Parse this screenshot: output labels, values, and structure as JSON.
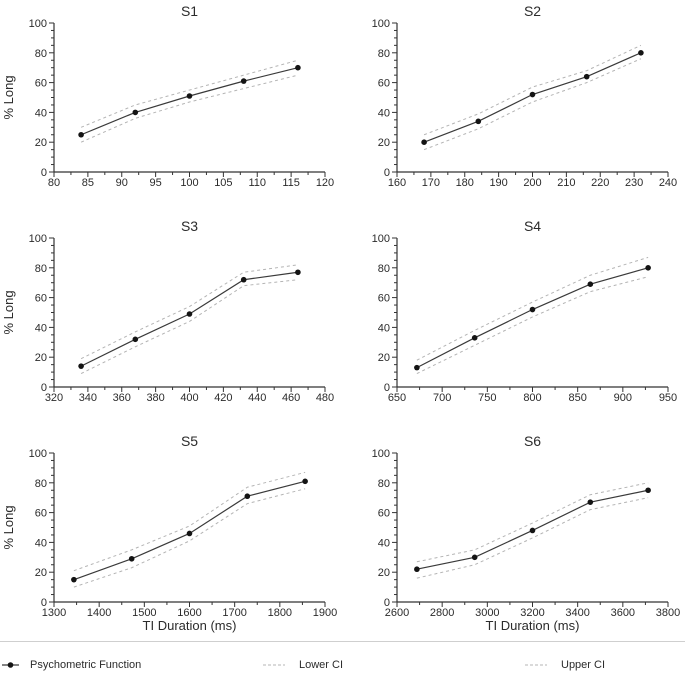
{
  "colors": {
    "background": "#ffffff",
    "line": "#3a3a3a",
    "marker": "#141414",
    "ci": "#b4b4b4",
    "axis": "#333333",
    "text": "#2b2b2b",
    "divider": "#cfcfcf"
  },
  "legend": {
    "position": "bottom",
    "items": [
      {
        "label": "Psychometric Function",
        "style": "solid-line-with-marker"
      },
      {
        "label": "Lower CI",
        "style": "dashed"
      },
      {
        "label": "Upper CI",
        "style": "dashed"
      }
    ]
  },
  "chart_data": [
    {
      "type": "line",
      "title": "S1",
      "x": [
        84,
        92,
        100,
        108,
        116
      ],
      "series": [
        {
          "name": "Psychometric Function",
          "style": "solid-marker",
          "values": [
            25,
            40,
            51,
            61,
            70
          ]
        },
        {
          "name": "Lower CI",
          "style": "dashed",
          "values": [
            20,
            36,
            47,
            56,
            65
          ]
        },
        {
          "name": "Upper CI",
          "style": "dashed",
          "values": [
            30,
            45,
            55,
            65,
            75
          ]
        }
      ],
      "xlim": [
        80,
        120
      ],
      "xtick_step": 5,
      "xminor_step": 2.5,
      "ylim": [
        0,
        100
      ],
      "ytick_step": 20,
      "yminor_step": 5,
      "ylabel": "% Long",
      "xlabel": null,
      "grid": false
    },
    {
      "type": "line",
      "title": "S2",
      "x": [
        168,
        184,
        200,
        216,
        232
      ],
      "series": [
        {
          "name": "Psychometric Function",
          "style": "solid-marker",
          "values": [
            20,
            34,
            52,
            64,
            80
          ]
        },
        {
          "name": "Lower CI",
          "style": "dashed",
          "values": [
            15,
            29,
            47,
            60,
            76
          ]
        },
        {
          "name": "Upper CI",
          "style": "dashed",
          "values": [
            25,
            39,
            57,
            68,
            85
          ]
        }
      ],
      "xlim": [
        160,
        240
      ],
      "xtick_step": 10,
      "xminor_step": 5,
      "ylim": [
        0,
        100
      ],
      "ytick_step": 20,
      "yminor_step": 5,
      "ylabel": null,
      "xlabel": null,
      "grid": false
    },
    {
      "type": "line",
      "title": "S3",
      "x": [
        336,
        368,
        400,
        432,
        464
      ],
      "series": [
        {
          "name": "Psychometric Function",
          "style": "solid-marker",
          "values": [
            14,
            32,
            49,
            72,
            77
          ]
        },
        {
          "name": "Lower CI",
          "style": "dashed",
          "values": [
            9,
            27,
            44,
            68,
            72
          ]
        },
        {
          "name": "Upper CI",
          "style": "dashed",
          "values": [
            19,
            37,
            54,
            77,
            82
          ]
        }
      ],
      "xlim": [
        320,
        480
      ],
      "xtick_step": 20,
      "xminor_step": 10,
      "ylim": [
        0,
        100
      ],
      "ytick_step": 20,
      "yminor_step": 5,
      "ylabel": "% Long",
      "xlabel": null,
      "grid": false
    },
    {
      "type": "line",
      "title": "S4",
      "x": [
        672,
        736,
        800,
        864,
        928
      ],
      "series": [
        {
          "name": "Psychometric Function",
          "style": "solid-marker",
          "values": [
            13,
            33,
            52,
            69,
            80
          ]
        },
        {
          "name": "Lower CI",
          "style": "dashed",
          "values": [
            9,
            28,
            47,
            64,
            74
          ]
        },
        {
          "name": "Upper CI",
          "style": "dashed",
          "values": [
            18,
            38,
            57,
            75,
            87
          ]
        }
      ],
      "xlim": [
        650,
        950
      ],
      "xtick_step": 50,
      "xminor_step": 25,
      "ylim": [
        0,
        100
      ],
      "ytick_step": 20,
      "yminor_step": 5,
      "ylabel": null,
      "xlabel": null,
      "grid": false
    },
    {
      "type": "line",
      "title": "S5",
      "x": [
        1344,
        1472,
        1600,
        1728,
        1856
      ],
      "series": [
        {
          "name": "Psychometric Function",
          "style": "solid-marker",
          "values": [
            15,
            29,
            46,
            71,
            81
          ]
        },
        {
          "name": "Lower CI",
          "style": "dashed",
          "values": [
            10,
            23,
            41,
            66,
            76
          ]
        },
        {
          "name": "Upper CI",
          "style": "dashed",
          "values": [
            21,
            35,
            51,
            77,
            87
          ]
        }
      ],
      "xlim": [
        1300,
        1900
      ],
      "xtick_step": 100,
      "xminor_step": 50,
      "ylim": [
        0,
        100
      ],
      "ytick_step": 20,
      "yminor_step": 5,
      "ylabel": "% Long",
      "xlabel": "TI Duration (ms)",
      "grid": false
    },
    {
      "type": "line",
      "title": "S6",
      "x": [
        2688,
        2944,
        3200,
        3456,
        3712
      ],
      "series": [
        {
          "name": "Psychometric Function",
          "style": "solid-marker",
          "values": [
            22,
            30,
            48,
            67,
            75
          ]
        },
        {
          "name": "Lower CI",
          "style": "dashed",
          "values": [
            16,
            25,
            43,
            62,
            70
          ]
        },
        {
          "name": "Upper CI",
          "style": "dashed",
          "values": [
            27,
            35,
            53,
            72,
            80
          ]
        }
      ],
      "xlim": [
        2600,
        3800
      ],
      "xtick_step": 200,
      "xminor_step": 100,
      "ylim": [
        0,
        100
      ],
      "ytick_step": 20,
      "yminor_step": 5,
      "ylabel": null,
      "xlabel": "TI Duration (ms)",
      "grid": false
    }
  ]
}
